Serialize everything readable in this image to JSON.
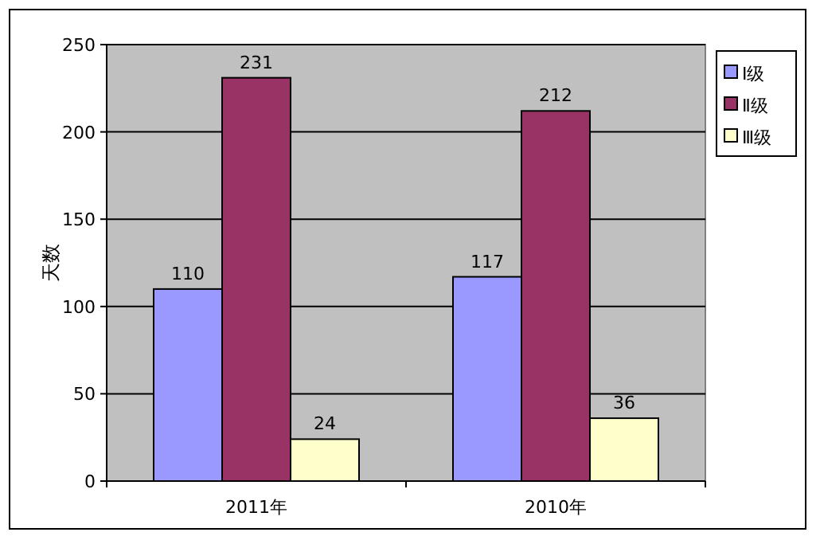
{
  "chart_data": {
    "type": "bar",
    "ylabel": "天数",
    "categories": [
      "2011年",
      "2010年"
    ],
    "series": [
      {
        "name": "Ⅰ级",
        "color": "#9999ff",
        "values": [
          110,
          117
        ]
      },
      {
        "name": "Ⅱ级",
        "color": "#993366",
        "values": [
          231,
          212
        ]
      },
      {
        "name": "Ⅲ级",
        "color": "#ffffcc",
        "values": [
          24,
          36
        ]
      }
    ],
    "ylim": [
      0,
      250
    ],
    "yticks": [
      0,
      50,
      100,
      150,
      200,
      250
    ],
    "grid": "y",
    "legend": "right",
    "data_labels": true
  }
}
